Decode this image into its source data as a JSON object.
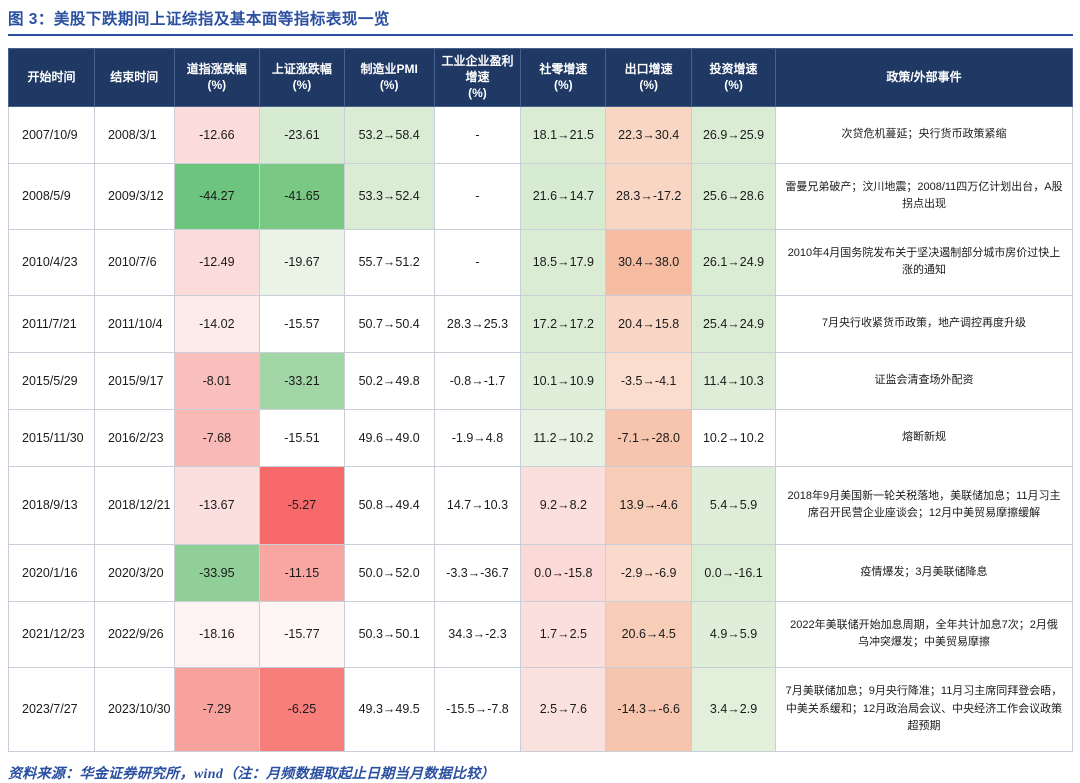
{
  "colors": {
    "accent": "#2B50A1",
    "header_bg": "#1F3864",
    "header_text": "#FFFFFF",
    "body_border": "#C9CED8",
    "heat_green_strong": "#6CC47E",
    "heat_green_light": "#DBECD5",
    "heat_red_strong": "#F8696B",
    "heat_pink_light": "#FBDCDB",
    "heat_salmon": "#F8CDB8"
  },
  "figure": {
    "title": "图 3：美股下跌期间上证综指及基本面等指标表现一览"
  },
  "chart_data": {
    "type": "table",
    "title": "美股下跌期间上证综指及基本面等指标表现一览",
    "columns": [
      {
        "id": "start",
        "label": "开始时间",
        "unit": ""
      },
      {
        "id": "end",
        "label": "结束时间",
        "unit": ""
      },
      {
        "id": "dow",
        "label": "道指涨跌幅",
        "unit": "(%)"
      },
      {
        "id": "sse",
        "label": "上证涨跌幅",
        "unit": "(%)"
      },
      {
        "id": "pmi",
        "label": "制造业PMI",
        "unit": "(%)"
      },
      {
        "id": "profit",
        "label": "工业企业盈利增速",
        "unit": "(%)"
      },
      {
        "id": "retail",
        "label": "社零增速",
        "unit": "(%)"
      },
      {
        "id": "export",
        "label": "出口增速",
        "unit": "(%)"
      },
      {
        "id": "invest",
        "label": "投资增速",
        "unit": "(%)"
      },
      {
        "id": "policy",
        "label": "政策/外部事件",
        "unit": ""
      }
    ],
    "rows": [
      {
        "cells": [
          "2007/10/9",
          "2008/3/1",
          "-12.66",
          "-23.61",
          "53.2→58.4",
          "-",
          "18.1→21.5",
          "22.3→30.4",
          "26.9→25.9",
          "次贷危机蔓延；央行货币政策紧缩"
        ],
        "bg": [
          "#FFFFFF",
          "#FFFFFF",
          "#FBDCDB",
          "#D7EBD2",
          "#DBECD5",
          "#FFFFFF",
          "#DBECD5",
          "#F9D5C3",
          "#DBECD5",
          "#FFFFFF"
        ]
      },
      {
        "cells": [
          "2008/5/9",
          "2009/3/12",
          "-44.27",
          "-41.65",
          "53.3→52.4",
          "-",
          "21.6→14.7",
          "28.3→-17.2",
          "25.6→28.6",
          "雷曼兄弟破产；汶川地震；2008/11四万亿计划出台，A股拐点出现"
        ],
        "bg": [
          "#FFFFFF",
          "#FFFFFF",
          "#6CC47E",
          "#79C884",
          "#DBECD5",
          "#FFFFFF",
          "#D7EBD2",
          "#F9D5C3",
          "#DBECD5",
          "#FFFFFF"
        ]
      },
      {
        "cells": [
          "2010/4/23",
          "2010/7/6",
          "-12.49",
          "-19.67",
          "55.7→51.2",
          "-",
          "18.5→17.9",
          "30.4→38.0",
          "26.1→24.9",
          "2010年4月国务院发布关于坚决遏制部分城市房价过快上涨的通知"
        ],
        "bg": [
          "#FFFFFF",
          "#FFFFFF",
          "#FBDCDB",
          "#EAF4E6",
          "#FFFFFF",
          "#FFFFFF",
          "#DBECD5",
          "#F5BCA1",
          "#DBECD5",
          "#FFFFFF"
        ]
      },
      {
        "cells": [
          "2011/7/21",
          "2011/10/4",
          "-14.02",
          "-15.57",
          "50.7→50.4",
          "28.3→25.3",
          "17.2→17.2",
          "20.4→15.8",
          "25.4→24.9",
          "7月央行收紧货币政策，地产调控再度升级"
        ],
        "bg": [
          "#FFFFFF",
          "#FFFFFF",
          "#FDEBEA",
          "#FFFFFF",
          "#FFFFFF",
          "#FFFFFF",
          "#DBECD5",
          "#F9D6C5",
          "#DBECD5",
          "#FFFFFF"
        ]
      },
      {
        "cells": [
          "2015/5/29",
          "2015/9/17",
          "-8.01",
          "-33.21",
          "50.2→49.8",
          "-0.8→-1.7",
          "10.1→10.9",
          "-3.5→-4.1",
          "11.4→10.3",
          "证监会清查场外配资"
        ],
        "bg": [
          "#FFFFFF",
          "#FFFFFF",
          "#F9BFBC",
          "#A3D6A6",
          "#FFFFFF",
          "#FFFFFF",
          "#DFEED9",
          "#FBDDCE",
          "#DDEDD7",
          "#FFFFFF"
        ]
      },
      {
        "cells": [
          "2015/11/30",
          "2016/2/23",
          "-7.68",
          "-15.51",
          "49.6→49.0",
          "-1.9→4.8",
          "11.2→10.2",
          "-7.1→-28.0",
          "10.2→10.2",
          "熔断新规"
        ],
        "bg": [
          "#FFFFFF",
          "#FFFFFF",
          "#F9B9B6",
          "#FFFFFF",
          "#FFFFFF",
          "#FFFFFF",
          "#E7F2E2",
          "#F7C5AD",
          "#FFFFFF",
          "#FFFFFF"
        ]
      },
      {
        "cells": [
          "2018/9/13",
          "2018/12/21",
          "-13.67",
          "-5.27",
          "50.8→49.4",
          "14.7→10.3",
          "9.2→8.2",
          "13.9→-4.6",
          "5.4→5.9",
          "2018年9月美国新一轮关税落地，美联储加息；11月习主席召开民营企业座谈会；12月中美贸易摩擦缓解"
        ],
        "bg": [
          "#FFFFFF",
          "#FFFFFF",
          "#FBDFDE",
          "#F8696B",
          "#FFFFFF",
          "#FFFFFF",
          "#FBDFDC",
          "#F8CDB8",
          "#DFEED9",
          "#FFFFFF"
        ]
      },
      {
        "cells": [
          "2020/1/16",
          "2020/3/20",
          "-33.95",
          "-11.15",
          "50.0→52.0",
          "-3.3→-36.7",
          "0.0→-15.8",
          "-2.9→-6.9",
          "0.0→-16.1",
          "疫情爆发；3月美联储降息"
        ],
        "bg": [
          "#FFFFFF",
          "#FFFFFF",
          "#90CF98",
          "#F9A6A2",
          "#FFFFFF",
          "#FFFFFF",
          "#FBD9D6",
          "#FADACB",
          "#DBECD5",
          "#FFFFFF"
        ]
      },
      {
        "cells": [
          "2021/12/23",
          "2022/9/26",
          "-18.16",
          "-15.77",
          "50.3→50.1",
          "34.3→-2.3",
          "1.7→2.5",
          "20.6→4.5",
          "4.9→5.9",
          "2022年美联储开始加息周期，全年共计加息7次；2月俄乌冲突爆发；中美贸易摩擦"
        ],
        "bg": [
          "#FFFFFF",
          "#FFFFFF",
          "#FEF3F2",
          "#FEF6F5",
          "#FFFFFF",
          "#FFFFFF",
          "#FBDFDC",
          "#F8CDB8",
          "#DFEED9",
          "#FFFFFF"
        ]
      },
      {
        "cells": [
          "2023/7/27",
          "2023/10/30",
          "-7.29",
          "-6.25",
          "49.3→49.5",
          "-15.5→-7.8",
          "2.5→7.6",
          "-14.3→-6.6",
          "3.4→2.9",
          "7月美联储加息；9月央行降准；11月习主席同拜登会晤，中美关系缓和；12月政治局会议、中央经济工作会议政策超预期"
        ],
        "bg": [
          "#FFFFFF",
          "#FFFFFF",
          "#F8A29E",
          "#F87E7C",
          "#FFFFFF",
          "#FFFFFF",
          "#FBE1DE",
          "#F7C5AD",
          "#E1EFDB",
          "#FFFFFF"
        ]
      }
    ]
  },
  "footer": {
    "source": "资料来源：华金证券研究所，wind（注：月频数据取起止日期当月数据比较）"
  }
}
